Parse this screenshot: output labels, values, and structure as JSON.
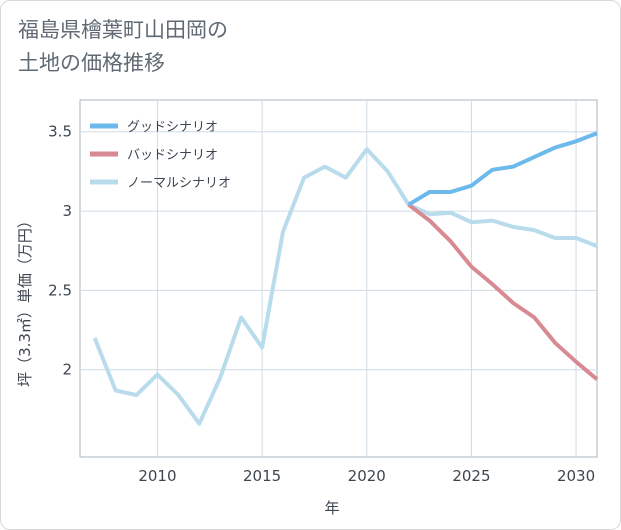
{
  "title": "福島県檜葉町山田岡の\n土地の価格推移",
  "chart_data": {
    "type": "line",
    "xlabel": "年",
    "ylabel": "坪（3.3㎡）単価（万円）",
    "xlim": [
      2006.3,
      2031
    ],
    "ylim": [
      1.45,
      3.7
    ],
    "x_ticks": [
      2010,
      2015,
      2020,
      2025,
      2030
    ],
    "y_ticks": [
      2,
      2.5,
      3,
      3.5
    ],
    "y_tick_labels": [
      "2",
      "2.5",
      "3",
      "3.5"
    ],
    "grid": true,
    "legend_position": "top-left",
    "series": [
      {
        "name": "グッドシナリオ",
        "color": "#6cb9ec",
        "x": [
          2022,
          2023,
          2024,
          2025,
          2026,
          2027,
          2028,
          2029,
          2030,
          2031
        ],
        "values": [
          3.04,
          3.12,
          3.12,
          3.16,
          3.26,
          3.28,
          3.34,
          3.4,
          3.44,
          3.49
        ]
      },
      {
        "name": "バッドシナリオ",
        "color": "#d88a92",
        "x": [
          2022,
          2023,
          2024,
          2025,
          2026,
          2027,
          2028,
          2029,
          2030,
          2031
        ],
        "values": [
          3.04,
          2.94,
          2.81,
          2.65,
          2.54,
          2.42,
          2.33,
          2.17,
          2.05,
          1.94
        ]
      },
      {
        "name": "ノーマルシナリオ",
        "color": "#b9dcec",
        "x": [
          2007,
          2008,
          2009,
          2010,
          2011,
          2012,
          2013,
          2014,
          2015,
          2016,
          2017,
          2018,
          2019,
          2020,
          2021,
          2022,
          2023,
          2024,
          2025,
          2026,
          2027,
          2028,
          2029,
          2030,
          2031
        ],
        "values": [
          2.2,
          1.87,
          1.84,
          1.97,
          1.84,
          1.66,
          1.95,
          2.33,
          2.14,
          2.87,
          3.21,
          3.28,
          3.21,
          3.39,
          3.25,
          3.04,
          2.98,
          2.99,
          2.93,
          2.94,
          2.9,
          2.88,
          2.83,
          2.83,
          2.78
        ]
      }
    ]
  }
}
